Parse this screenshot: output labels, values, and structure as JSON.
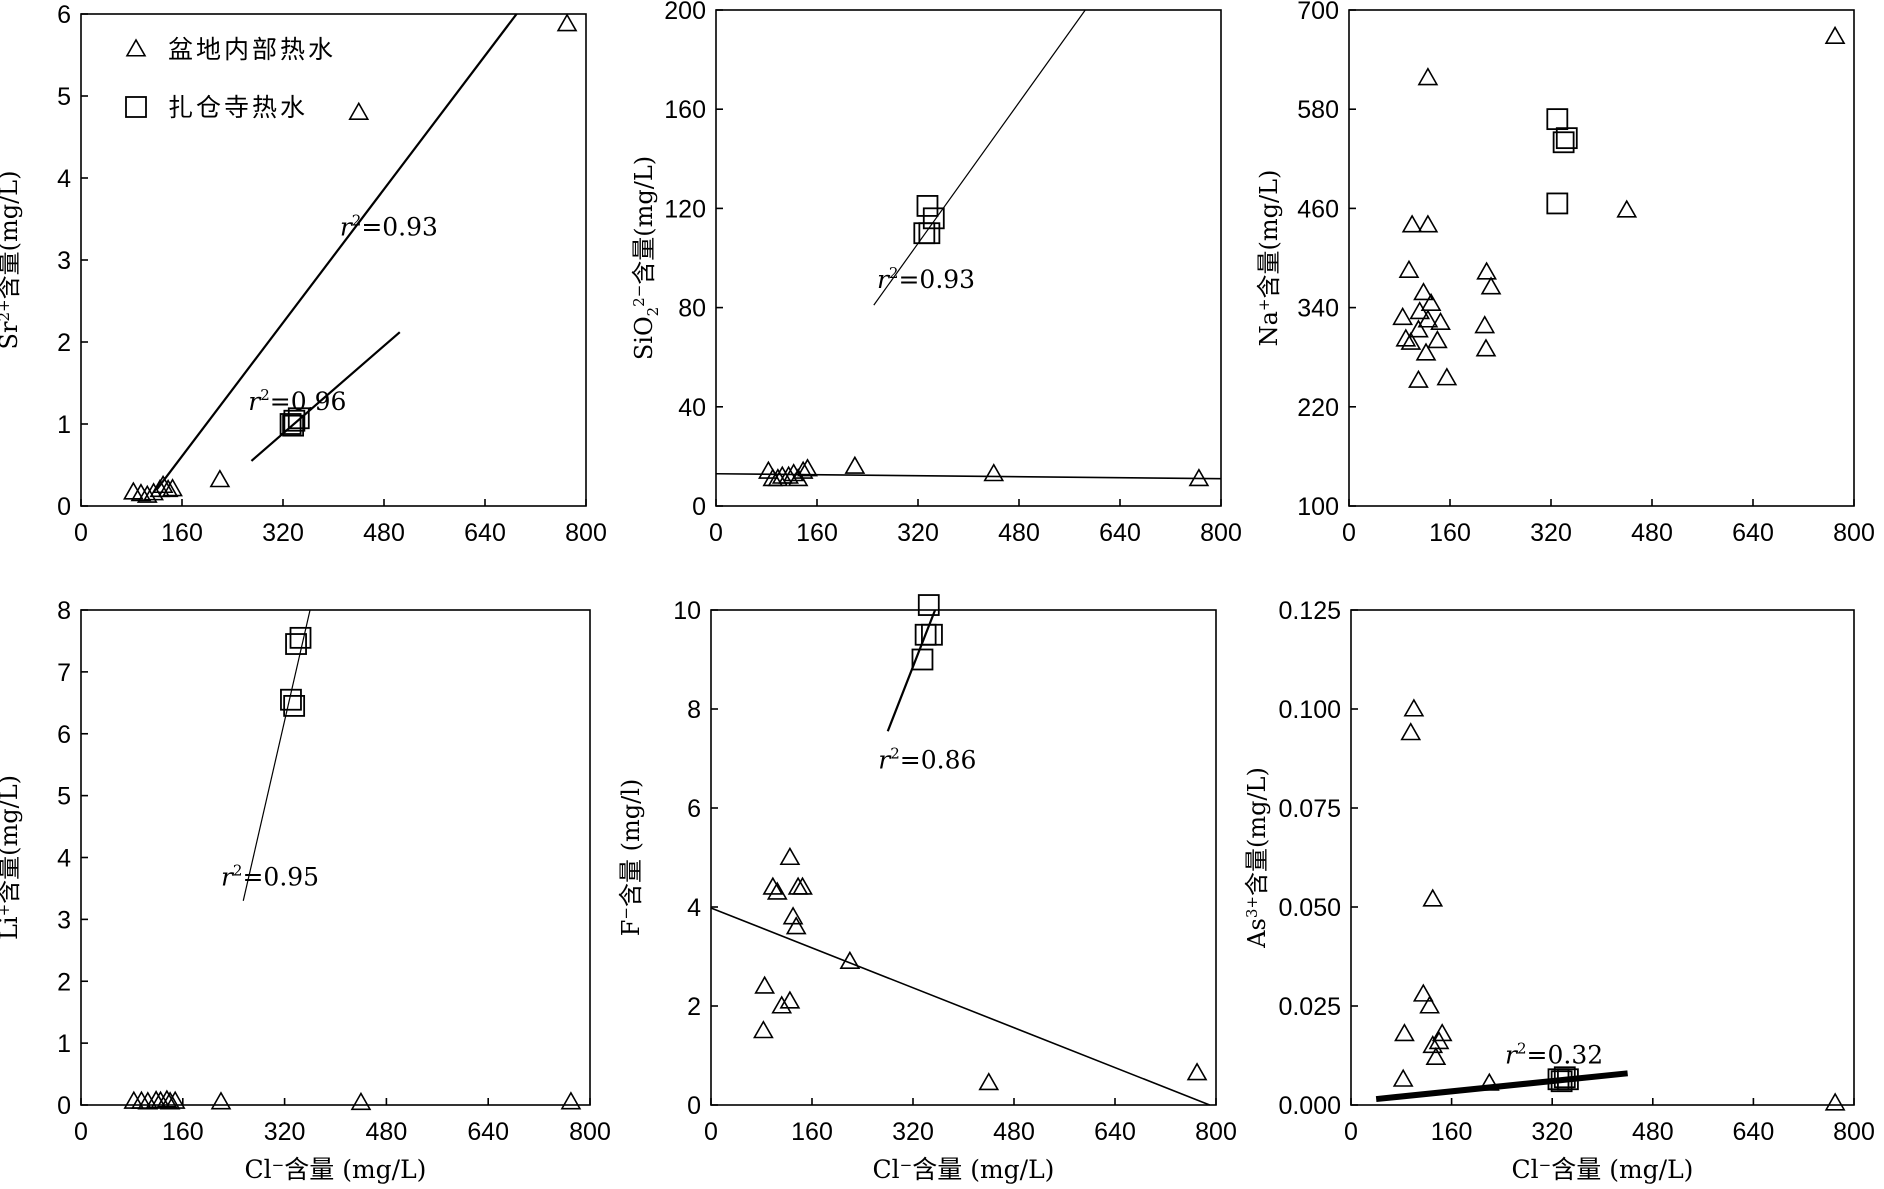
{
  "chart_data": [
    {
      "type": "scatter",
      "title": "",
      "xlabel": "",
      "ylabel": "Sr²⁺含量(mg/L)",
      "xlim": [
        0,
        800
      ],
      "ylim": [
        0,
        6
      ],
      "xticks": [
        "0",
        "160",
        "320",
        "480",
        "640",
        "800"
      ],
      "yticks": [
        "0",
        "1",
        "2",
        "3",
        "4",
        "5",
        "6"
      ],
      "legend": {
        "position": "top-left",
        "entries": [
          {
            "marker": "triangle",
            "label": "盆地内部热水"
          },
          {
            "marker": "square",
            "label": "扎仓寺热水"
          }
        ]
      },
      "series": [
        {
          "name": "盆地内部热水",
          "marker": "triangle",
          "points": [
            [
              83,
              0.17
            ],
            [
              95,
              0.15
            ],
            [
              105,
              0.13
            ],
            [
              115,
              0.16
            ],
            [
              125,
              0.2
            ],
            [
              130,
              0.25
            ],
            [
              138,
              0.2
            ],
            [
              145,
              0.21
            ],
            [
              220,
              0.32
            ],
            [
              440,
              4.8
            ],
            [
              770,
              5.88
            ]
          ]
        },
        {
          "name": "扎仓寺热水",
          "marker": "square",
          "points": [
            [
              332,
              1.0
            ],
            [
              338,
              1.04
            ],
            [
              345,
              1.07
            ],
            [
              336,
              0.98
            ]
          ]
        }
      ],
      "fits": [
        {
          "x": [
            120,
            690
          ],
          "y": [
            0.2,
            6.0
          ],
          "label": "r²=0.93",
          "width": 2.2
        },
        {
          "x": [
            270,
            505
          ],
          "y": [
            0.55,
            2.12
          ],
          "label": "r²=0.96",
          "width": 2.2
        }
      ]
    },
    {
      "type": "scatter",
      "title": "",
      "xlabel": "",
      "ylabel": "SiO₂²⁻含量(mg/L)",
      "xlim": [
        0,
        800
      ],
      "ylim": [
        0,
        200
      ],
      "xticks": [
        "0",
        "160",
        "320",
        "480",
        "640",
        "800"
      ],
      "yticks": [
        "0",
        "40",
        "80",
        "120",
        "160",
        "200"
      ],
      "series": [
        {
          "name": "盆地内部热水",
          "marker": "triangle",
          "points": [
            [
              83,
              14
            ],
            [
              90,
              11
            ],
            [
              98,
              11
            ],
            [
              105,
              12
            ],
            [
              115,
              12
            ],
            [
              123,
              13
            ],
            [
              130,
              11
            ],
            [
              138,
              14
            ],
            [
              145,
              15
            ],
            [
              220,
              16
            ],
            [
              440,
              13
            ],
            [
              765,
              11
            ]
          ]
        },
        {
          "name": "扎仓寺热水",
          "marker": "square",
          "points": [
            [
              335,
              121
            ],
            [
              345,
              116
            ],
            [
              330,
              110
            ],
            [
              338,
              110
            ]
          ]
        }
      ],
      "fits": [
        {
          "x": [
            0,
            800
          ],
          "y": [
            13,
            11
          ],
          "label": "",
          "width": 1.6
        },
        {
          "x": [
            250,
            585
          ],
          "y": [
            81,
            200
          ],
          "label": "r²=0.93",
          "width": 1.2
        }
      ]
    },
    {
      "type": "scatter",
      "title": "",
      "xlabel": "",
      "ylabel": "Na⁺含量(mg/L)",
      "xlim": [
        0,
        800
      ],
      "ylim": [
        100,
        700
      ],
      "xticks": [
        "0",
        "160",
        "320",
        "480",
        "640",
        "800"
      ],
      "yticks": [
        "100",
        "220",
        "340",
        "460",
        "580",
        "700"
      ],
      "series": [
        {
          "name": "盆地内部热水",
          "marker": "triangle",
          "points": [
            [
              125,
              618
            ],
            [
              100,
              440
            ],
            [
              125,
              440
            ],
            [
              95,
              385
            ],
            [
              118,
              358
            ],
            [
              130,
              345
            ],
            [
              112,
              335
            ],
            [
              85,
              328
            ],
            [
              125,
              325
            ],
            [
              145,
              322
            ],
            [
              110,
              313
            ],
            [
              90,
              302
            ],
            [
              98,
              298
            ],
            [
              140,
              300
            ],
            [
              122,
              285
            ],
            [
              110,
              252
            ],
            [
              155,
              255
            ],
            [
              218,
              383
            ],
            [
              225,
              365
            ],
            [
              215,
              318
            ],
            [
              217,
              290
            ],
            [
              440,
              458
            ],
            [
              770,
              668
            ]
          ]
        },
        {
          "name": "扎仓寺热水",
          "marker": "square",
          "points": [
            [
              330,
              568
            ],
            [
              340,
              540
            ],
            [
              345,
              545
            ],
            [
              330,
              466
            ]
          ]
        }
      ],
      "fits": []
    },
    {
      "type": "scatter",
      "title": "",
      "xlabel": "Cl⁻含量 (mg/L)",
      "ylabel": "Li⁺含量(mg/L)",
      "xlim": [
        0,
        800
      ],
      "ylim": [
        0,
        8
      ],
      "xticks": [
        "0",
        "160",
        "320",
        "480",
        "640",
        "800"
      ],
      "yticks": [
        "0",
        "1",
        "2",
        "3",
        "4",
        "5",
        "6",
        "7",
        "8"
      ],
      "series": [
        {
          "name": "盆地内部热水",
          "marker": "triangle",
          "points": [
            [
              83,
              0.06
            ],
            [
              95,
              0.06
            ],
            [
              105,
              0.05
            ],
            [
              118,
              0.07
            ],
            [
              125,
              0.06
            ],
            [
              135,
              0.08
            ],
            [
              140,
              0.05
            ],
            [
              148,
              0.06
            ],
            [
              220,
              0.05
            ],
            [
              440,
              0.04
            ],
            [
              770,
              0.05
            ]
          ]
        },
        {
          "name": "扎仓寺热水",
          "marker": "square",
          "points": [
            [
              345,
              7.55
            ],
            [
              338,
              7.45
            ],
            [
              330,
              6.55
            ],
            [
              335,
              6.45
            ]
          ]
        }
      ],
      "fits": [
        {
          "x": [
            255,
            360
          ],
          "y": [
            3.3,
            8.0
          ],
          "label": "r²=0.95",
          "width": 1.2
        }
      ]
    },
    {
      "type": "scatter",
      "title": "",
      "xlabel": "Cl⁻含量 (mg/L)",
      "ylabel": "F⁻含量 (mg/l)",
      "xlim": [
        0,
        800
      ],
      "ylim": [
        0,
        10
      ],
      "xticks": [
        "0",
        "160",
        "320",
        "480",
        "640",
        "800"
      ],
      "yticks": [
        "0",
        "2",
        "4",
        "6",
        "8",
        "10"
      ],
      "series": [
        {
          "name": "盆地内部热水",
          "marker": "triangle",
          "points": [
            [
              125,
              5.0
            ],
            [
              98,
              4.4
            ],
            [
              105,
              4.3
            ],
            [
              138,
              4.4
            ],
            [
              145,
              4.4
            ],
            [
              130,
              3.8
            ],
            [
              135,
              3.6
            ],
            [
              85,
              2.4
            ],
            [
              125,
              2.1
            ],
            [
              112,
              2.0
            ],
            [
              83,
              1.5
            ],
            [
              220,
              2.9
            ],
            [
              440,
              0.45
            ],
            [
              770,
              0.65
            ]
          ]
        },
        {
          "name": "扎仓寺热水",
          "marker": "square",
          "points": [
            [
              345,
              10.1
            ],
            [
              340,
              9.5
            ],
            [
              350,
              9.5
            ],
            [
              335,
              9.0
            ]
          ]
        }
      ],
      "fits": [
        {
          "x": [
            0,
            790
          ],
          "y": [
            3.98,
            0.0
          ],
          "label": "",
          "width": 1.6
        },
        {
          "x": [
            280,
            355
          ],
          "y": [
            7.55,
            10.0
          ],
          "label": "r²=0.86",
          "width": 2.2
        }
      ]
    },
    {
      "type": "scatter",
      "title": "",
      "xlabel": "Cl⁻含量 (mg/L)",
      "ylabel": "As³⁺含量(mg/L)",
      "xlim": [
        0,
        800
      ],
      "ylim": [
        0,
        0.125
      ],
      "xticks": [
        "0",
        "160",
        "320",
        "480",
        "640",
        "800"
      ],
      "yticks": [
        "0.000",
        "0.025",
        "0.050",
        "0.075",
        "0.100",
        "0.125"
      ],
      "series": [
        {
          "name": "盆地内部热水",
          "marker": "triangle",
          "points": [
            [
              100,
              0.1
            ],
            [
              95,
              0.094
            ],
            [
              130,
              0.052
            ],
            [
              115,
              0.028
            ],
            [
              125,
              0.025
            ],
            [
              85,
              0.018
            ],
            [
              145,
              0.018
            ],
            [
              140,
              0.016
            ],
            [
              130,
              0.015
            ],
            [
              135,
              0.012
            ],
            [
              83,
              0.0065
            ],
            [
              220,
              0.0055
            ],
            [
              770,
              0.0005
            ]
          ]
        },
        {
          "name": "扎仓寺热水",
          "marker": "square",
          "points": [
            [
              330,
              0.0065
            ],
            [
              340,
              0.007
            ],
            [
              345,
              0.0065
            ],
            [
              335,
              0.006
            ]
          ]
        }
      ],
      "fits": [
        {
          "x": [
            40,
            440
          ],
          "y": [
            0.0015,
            0.008
          ],
          "label": "r²=0.32",
          "width": 6
        }
      ]
    }
  ]
}
